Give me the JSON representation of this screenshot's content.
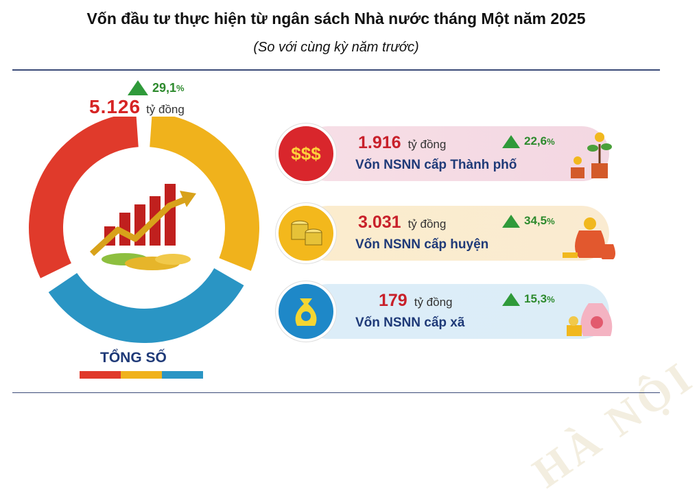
{
  "title": "Vốn đầu tư thực hiện từ ngân sách Nhà nước tháng Một năm 2025",
  "subtitle": "(So với cùng kỳ năm trước)",
  "watermark": "HÀ NỘI",
  "unit": "tỷ đồng",
  "total": {
    "label": "TỔNG SỐ",
    "value": "5.126",
    "change": "29,1",
    "pct_sign": "%"
  },
  "colors": {
    "city": "#e03a2b",
    "district": "#f0b21c",
    "commune": "#2a95c4",
    "up": "#2f9a3a"
  },
  "rows": [
    {
      "value": "1.916",
      "label": "Vốn NSNN cấp Thành phố",
      "change": "22,6",
      "pct_sign": "%",
      "icon": "dollar-signs-icon",
      "symbol": "$$$"
    },
    {
      "value": "3.031",
      "label": "Vốn NSNN cấp huyện",
      "change": "34,5",
      "pct_sign": "%",
      "icon": "coin-stack-icon"
    },
    {
      "value": "179",
      "label": "Vốn NSNN cấp xã",
      "change": "15,3",
      "pct_sign": "%",
      "icon": "money-bag-icon"
    }
  ],
  "chart_data": {
    "type": "pie",
    "categories": [
      "Vốn NSNN cấp Thành phố",
      "Vốn NSNN cấp huyện",
      "Vốn NSNN cấp xã"
    ],
    "values": [
      1916,
      3031,
      179
    ],
    "total": 5126,
    "change_pct": [
      22.6,
      34.5,
      15.3
    ],
    "total_change_pct": 29.1
  }
}
